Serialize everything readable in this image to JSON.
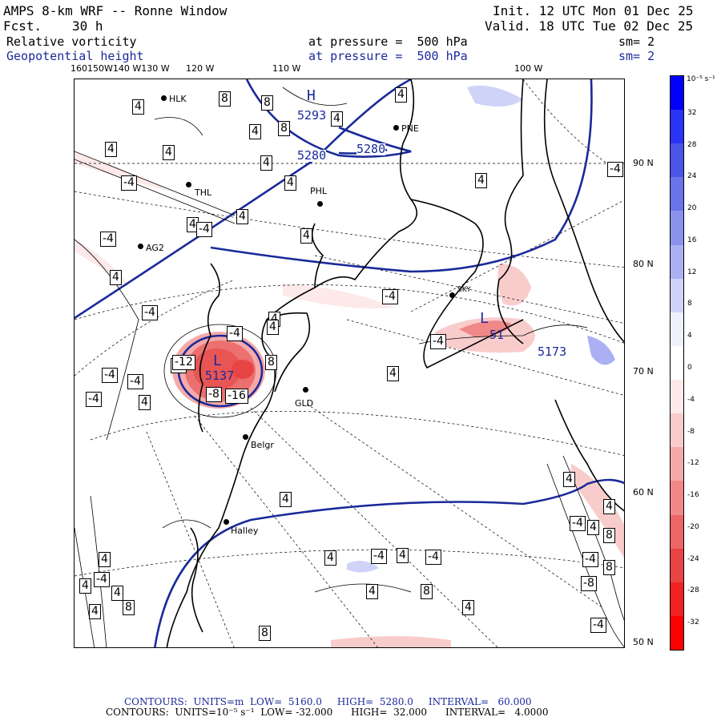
{
  "header": {
    "model": "AMPS 8-km WRF -- Ronne Window",
    "fcst_label": "Fcst.",
    "fcst_value": "30 h",
    "init": "Init. 12 UTC Mon 01 Dec 25",
    "valid": "Valid. 18 UTC Tue 02 Dec 25",
    "field1": "Relative vorticity",
    "field1_level": "at pressure =  500 hPa",
    "field1_sm": "sm= 2",
    "field2": "Geopotential height",
    "field2_level": "at pressure =  500 hPa",
    "field2_sm": "sm= 2"
  },
  "axes": {
    "lon_labels": [
      "160150W140 W130 W",
      "120 W",
      "110 W",
      "100 W"
    ],
    "lat_labels": [
      "90 N",
      "80 N",
      "70 N",
      "60 N",
      "50 N"
    ]
  },
  "stations": [
    "HLK",
    "PNE",
    "THL",
    "PHL",
    "AG2",
    "GLD",
    "Belgr",
    "Halley",
    "SKY"
  ],
  "height_labels": [
    "5293",
    "5280",
    "5280",
    "5137",
    "5173",
    "51"
  ],
  "extrema": [
    "H",
    "L",
    "L"
  ],
  "contour_boxes": [
    "4",
    "8",
    "8",
    "4",
    "8",
    "4",
    "4",
    "4",
    "4",
    "4",
    "-4",
    "4",
    "4",
    "-4",
    "4",
    "4",
    "-4",
    "4",
    "-4",
    "4",
    "4",
    "-4",
    "-4",
    "4",
    "-4",
    "-4",
    "8",
    "-4",
    "4",
    "-4",
    "-12",
    "-8",
    "-16",
    "-4",
    "-4",
    "4",
    "4",
    "4",
    "-4",
    "-4",
    "4",
    "4",
    "8",
    "4",
    "4",
    "-4",
    "4",
    "8",
    "-4",
    "4",
    "4",
    "-8",
    "-4",
    "8",
    "4",
    "8",
    "4",
    "8",
    "4",
    "4",
    "-4"
  ],
  "colorbar": {
    "unit": "10⁻⁵ s⁻¹",
    "ticks": [
      "32",
      "28",
      "24",
      "20",
      "16",
      "12",
      "8",
      "4",
      "0",
      "-4",
      "-8",
      "-12",
      "-16",
      "-20",
      "-24",
      "-28",
      "-32"
    ],
    "colors": [
      "#0000ff",
      "#2a34f4",
      "#4a55e8",
      "#6a74ea",
      "#8a92ee",
      "#aab0f2",
      "#cfd3f8",
      "#eef0fc",
      "#ffffff",
      "#fde9e9",
      "#f9cccc",
      "#f5aaaa",
      "#f08888",
      "#ec6666",
      "#e84444",
      "#f02222",
      "#ff0000"
    ]
  },
  "footer": {
    "line1": "CONTOURS:  UNITS=m  LOW=  5160.0     HIGH=  5280.0     INTERVAL=   60.000",
    "line2": "CONTOURS:  UNITS=10⁻⁵ s⁻¹  LOW= -32.000      HIGH=  32.000      INTERVAL=   4.0000"
  }
}
